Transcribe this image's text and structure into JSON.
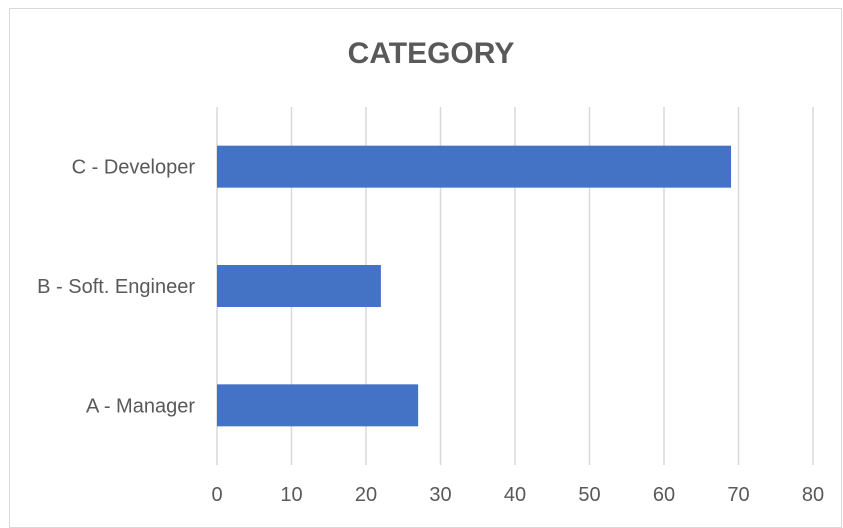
{
  "chart_data": {
    "type": "bar",
    "orientation": "horizontal",
    "title": "CATEGORY",
    "categories": [
      "A - Manager",
      "B - Soft. Engineer",
      "C - Developer"
    ],
    "values": [
      27,
      22,
      69
    ],
    "xlim": [
      0,
      80
    ],
    "xticks": [
      "0",
      "10",
      "20",
      "30",
      "40",
      "50",
      "60",
      "70",
      "80"
    ],
    "grid": true,
    "legend": "none",
    "bar_color": "#4472C4"
  }
}
